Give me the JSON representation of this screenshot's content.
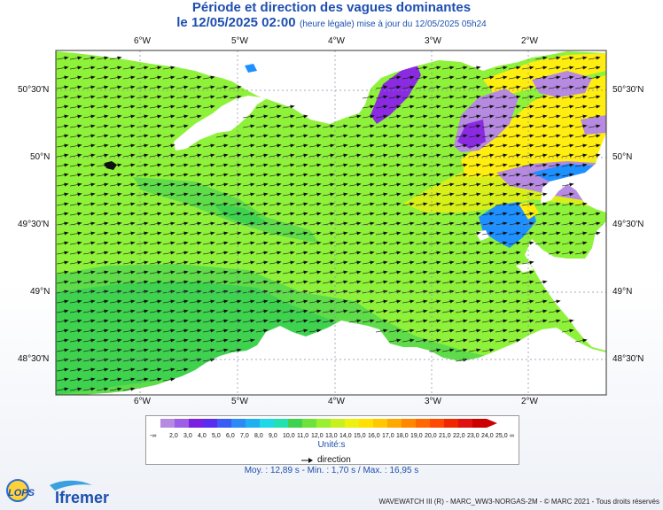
{
  "header": {
    "title": "Période et direction des vagues dominantes",
    "date_line": "le 12/05/2025 02:00",
    "subtitle": "(heure légale) mise à jour du 12/05/2025 05h24"
  },
  "map": {
    "longitude_labels": [
      "6°W",
      "5°W",
      "4°W",
      "3°W",
      "2°W"
    ],
    "latitude_labels": [
      "50°30'N",
      "50°N",
      "49°30'N",
      "49°N",
      "48°30'N"
    ],
    "colors": {
      "land": "#ffffff",
      "sea_green_light": "#8ef23a",
      "sea_green_mid": "#5fdc4a",
      "sea_green_dark": "#3ed24f",
      "purple": "#8a2be2",
      "lilac": "#b68ae0",
      "yellow": "#ffee10",
      "yellow_green": "#d8f01a",
      "blue": "#1e90ff",
      "frame": "#333333"
    },
    "wave_direction": "towards east-north-east"
  },
  "legend": {
    "scale_labels": [
      "-∞",
      "2,0",
      "3,0",
      "4,0",
      "5,0",
      "6,0",
      "7,0",
      "8,0",
      "9,0",
      "10,0",
      "11,0",
      "12,0",
      "13,0",
      "14,0",
      "15,0",
      "16,0",
      "17,0",
      "18,0",
      "19,0",
      "20,0",
      "21,0",
      "22,0",
      "23,0",
      "24,0",
      "25,0",
      "∞"
    ],
    "scale_colors": [
      "#b68ae0",
      "#9a5fe6",
      "#7b1fe0",
      "#5a2cf0",
      "#3a5cf5",
      "#2b8af5",
      "#1fb0f2",
      "#1ed8e8",
      "#22e0b0",
      "#3ed24f",
      "#6ee23a",
      "#9af030",
      "#c8f020",
      "#eef010",
      "#ffe000",
      "#ffc800",
      "#ffa800",
      "#ff8800",
      "#ff6800",
      "#ff4800",
      "#f02800",
      "#e01010",
      "#cc0000"
    ],
    "units": "Unité:s",
    "direction_label": "direction",
    "stats": "Moy. : 12,89 s   -   Min. : 1,70 s / Max. : 16,95 s"
  },
  "branding": {
    "lops": "LOPS",
    "ifremer": "Ifremer",
    "footer": "WAVEWATCH III (R) - MARC_WW3-NORGAS-2M - © MARC 2021 - Tous droits réservés"
  }
}
